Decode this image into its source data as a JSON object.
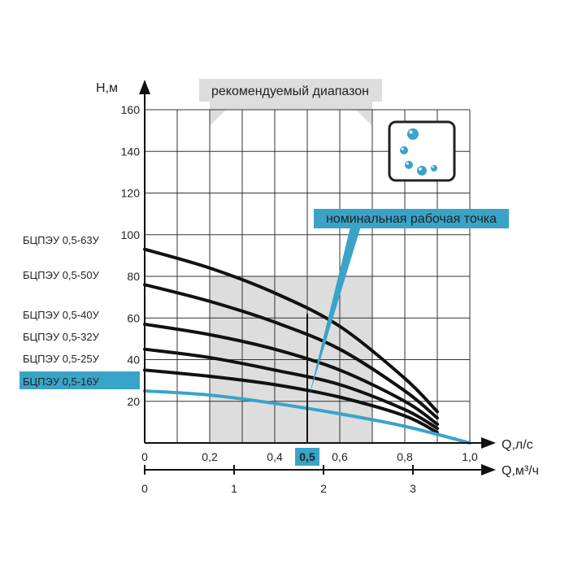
{
  "chart_data": {
    "type": "line",
    "ylabel": "Н,м",
    "xlabel": "Q,л/с",
    "x2label": "Q,м³/ч",
    "ylim": [
      0,
      165
    ],
    "xlim": [
      0,
      1.05
    ],
    "yticks": [
      "20",
      "40",
      "60",
      "80",
      "100",
      "120",
      "140",
      "160"
    ],
    "xticks": [
      "0",
      "0,2",
      "0,4",
      "0,5",
      "0,6",
      "0,8",
      "1,0"
    ],
    "x2ticks": [
      "0",
      "1",
      "2",
      "3"
    ],
    "highlight_x": "0,5",
    "band_label": "рекомендуемый диапазон",
    "band_range": [
      0.2,
      0.7
    ],
    "annotation": "номинальная рабочая точка",
    "nominal_q": 0.5,
    "grid": true,
    "series": [
      {
        "name": "БЦПЭУ 0,5-63У",
        "x": [
          0,
          0.2,
          0.4,
          0.6,
          0.8,
          0.9
        ],
        "values": [
          93,
          84,
          72,
          56,
          31,
          15
        ]
      },
      {
        "name": "БЦПЭУ 0,5-50У",
        "x": [
          0,
          0.2,
          0.4,
          0.6,
          0.8,
          0.9
        ],
        "values": [
          76,
          68,
          58,
          45,
          25,
          12
        ]
      },
      {
        "name": "БЦПЭУ 0,5-40У",
        "x": [
          0,
          0.2,
          0.4,
          0.6,
          0.8,
          0.9
        ],
        "values": [
          57,
          52,
          45,
          35,
          20,
          9
        ]
      },
      {
        "name": "БЦПЭУ 0,5-32У",
        "x": [
          0,
          0.2,
          0.4,
          0.6,
          0.8,
          0.9
        ],
        "values": [
          45,
          41,
          35,
          28,
          16,
          7
        ]
      },
      {
        "name": "БЦПЭУ 0,5-25У",
        "x": [
          0,
          0.2,
          0.4,
          0.6,
          0.8,
          0.9
        ],
        "values": [
          35,
          32,
          28,
          22,
          13,
          5
        ]
      },
      {
        "name": "БЦПЭУ 0,5-16У",
        "x": [
          0,
          0.2,
          0.4,
          0.6,
          0.8,
          1.0
        ],
        "values": [
          25,
          23,
          19,
          14,
          8,
          0
        ]
      }
    ],
    "colors": {
      "series": "#111111",
      "highlight": "#3aa3c8",
      "band": "#dddddd",
      "grid": "#333333"
    },
    "icon": "water-drops-icon"
  }
}
